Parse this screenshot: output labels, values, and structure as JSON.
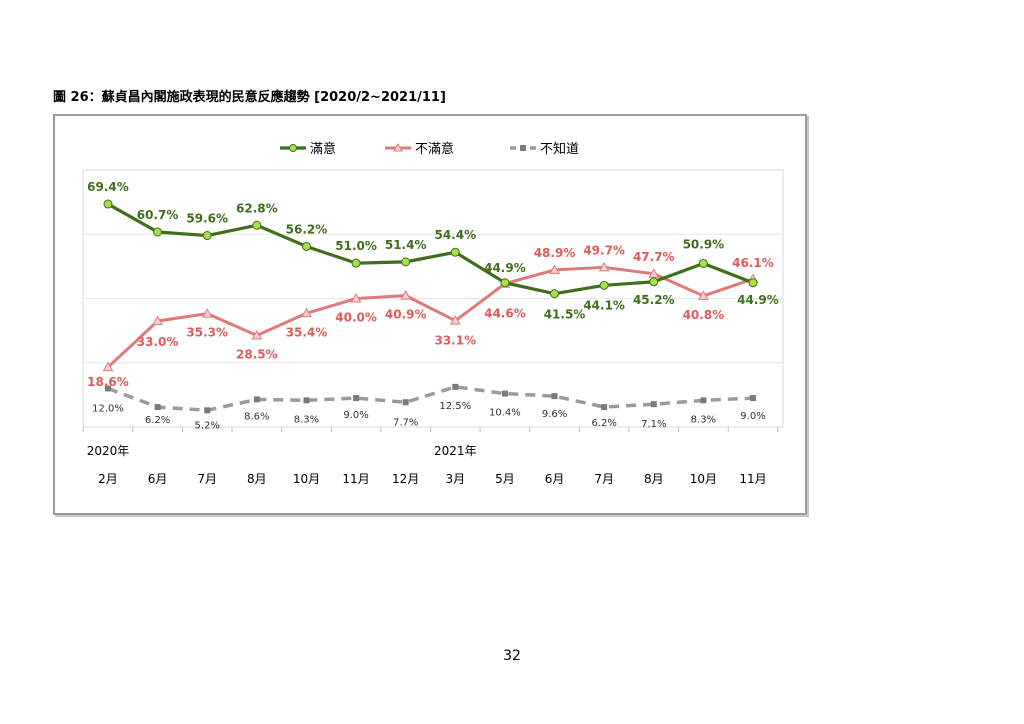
{
  "figure_title": "圖 26：蘇貞昌內閣施政表現的民意反應趨勢 [2020/2~2021/11]",
  "page_number": "32",
  "colors": {
    "satisfied": "#3f6f1a",
    "satisfied_marker": "#a8e04a",
    "dissatisfied": "#e07a7a",
    "dissatisfied_label": "#e05a5a",
    "dontknow": "#9b9b9b",
    "dontknow_label": "#333333",
    "grid": "#e6e6e6",
    "frame": "#9a9a9a"
  },
  "chart_data": {
    "type": "line",
    "categories": [
      "2月",
      "6月",
      "7月",
      "8月",
      "10月",
      "11月",
      "12月",
      "3月",
      "5月",
      "6月",
      "7月",
      "8月",
      "10月",
      "11月"
    ],
    "year_labels": [
      {
        "index": 0,
        "label": "2020年"
      },
      {
        "index": 7,
        "label": "2021年"
      }
    ],
    "ylim": [
      0,
      80
    ],
    "grid": true,
    "legend_position": "top",
    "series": [
      {
        "key": "satisfied",
        "name": "滿意",
        "values": [
          69.4,
          60.7,
          59.6,
          62.8,
          56.2,
          51.0,
          51.4,
          54.4,
          44.9,
          41.5,
          44.1,
          45.2,
          50.9,
          44.9
        ],
        "labels": [
          "69.4%",
          "60.7%",
          "59.6%",
          "62.8%",
          "56.2%",
          "51.0%",
          "51.4%",
          "54.4%",
          "44.9%",
          "41.5%",
          "44.1%",
          "45.2%",
          "50.9%",
          "44.9%"
        ]
      },
      {
        "key": "dissatisfied",
        "name": "不滿意",
        "values": [
          18.6,
          33.0,
          35.3,
          28.5,
          35.4,
          40.0,
          40.9,
          33.1,
          44.6,
          48.9,
          49.7,
          47.7,
          40.8,
          46.1
        ],
        "labels": [
          "18.6%",
          "33.0%",
          "35.3%",
          "28.5%",
          "35.4%",
          "40.0%",
          "40.9%",
          "33.1%",
          "44.6%",
          "48.9%",
          "49.7%",
          "47.7%",
          "40.8%",
          "46.1%"
        ]
      },
      {
        "key": "dontknow",
        "name": "不知道",
        "values": [
          12.0,
          6.2,
          5.2,
          8.6,
          8.3,
          9.0,
          7.7,
          12.5,
          10.4,
          9.6,
          6.2,
          7.1,
          8.3,
          9.0
        ],
        "labels": [
          "12.0%",
          "6.2%",
          "5.2%",
          "8.6%",
          "8.3%",
          "9.0%",
          "7.7%",
          "12.5%",
          "10.4%",
          "9.6%",
          "6.2%",
          "7.1%",
          "8.3%",
          "9.0%"
        ]
      }
    ]
  }
}
